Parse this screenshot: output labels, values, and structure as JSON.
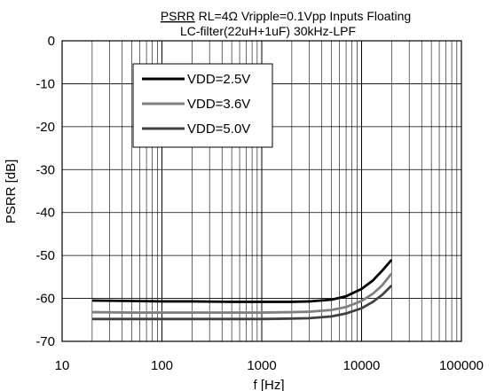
{
  "chart_data": {
    "type": "line",
    "title": {
      "underlined": "PSRR",
      "line1_rest": " RL=4Ω  Vripple=0.1Vpp  Inputs Floating",
      "line2": "LC-filter(22uH+1uF) 30kHz-LPF"
    },
    "xlabel": "f [Hz]",
    "ylabel": "PSRR [dB]",
    "x_scale": "log",
    "xlim": [
      10,
      100000
    ],
    "ylim": [
      -70,
      0
    ],
    "x_ticks": [
      10,
      100,
      1000,
      10000,
      100000
    ],
    "x_tick_labels": [
      "10",
      "100",
      "1000",
      "10000",
      "100000"
    ],
    "y_ticks": [
      0,
      -10,
      -20,
      -30,
      -40,
      -50,
      -60,
      -70
    ],
    "y_tick_labels": [
      "0",
      "-10",
      "-20",
      "-30",
      "-40",
      "-50",
      "-60",
      "-70"
    ],
    "grid": true,
    "legend_position": "top-left",
    "series": [
      {
        "name": "VDD=2.5V",
        "color": "#000000",
        "x": [
          20,
          50,
          100,
          200,
          500,
          1000,
          2000,
          3000,
          5000,
          7000,
          10000,
          13000,
          16000,
          20000
        ],
        "y": [
          -60.5,
          -60.6,
          -60.7,
          -60.7,
          -60.8,
          -60.8,
          -60.8,
          -60.7,
          -60.3,
          -59.5,
          -57.8,
          -55.8,
          -53.6,
          -51
        ]
      },
      {
        "name": "VDD=3.6V",
        "color": "#808080",
        "x": [
          20,
          50,
          100,
          200,
          500,
          1000,
          2000,
          3000,
          5000,
          7000,
          10000,
          13000,
          16000,
          20000
        ],
        "y": [
          -63.2,
          -63.3,
          -63.3,
          -63.3,
          -63.3,
          -63.3,
          -63.2,
          -63.1,
          -62.7,
          -62,
          -60.6,
          -58.9,
          -57,
          -54.2
        ]
      },
      {
        "name": "VDD=5.0V",
        "color": "#404040",
        "x": [
          20,
          50,
          100,
          200,
          500,
          1000,
          2000,
          3000,
          5000,
          7000,
          10000,
          13000,
          16000,
          20000
        ],
        "y": [
          -64.8,
          -64.8,
          -64.8,
          -64.8,
          -64.8,
          -64.8,
          -64.7,
          -64.6,
          -64.2,
          -63.5,
          -62.3,
          -60.8,
          -59.2,
          -57
        ]
      }
    ]
  }
}
